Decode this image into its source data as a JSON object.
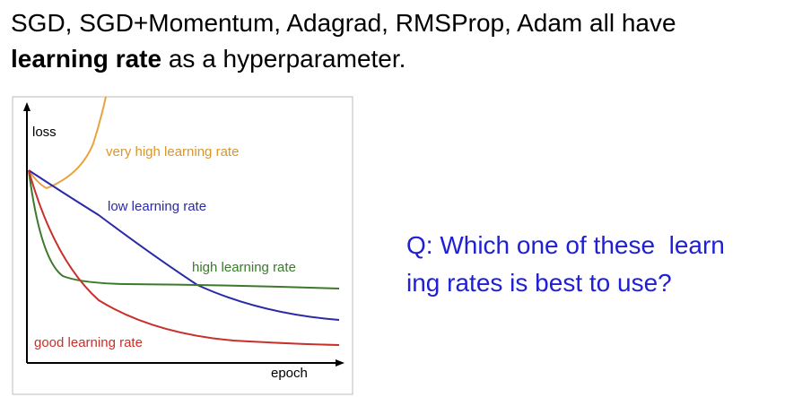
{
  "header": {
    "line1": "SGD, SGD+Momentum, Adagrad, RMSProp, Adam all have",
    "bold": "learning rate",
    "rest": " as a hyperparameter."
  },
  "figure": {
    "y_label": "loss",
    "x_label": "epoch",
    "curves": [
      {
        "label": "very high learning rate"
      },
      {
        "label": "low learning rate"
      },
      {
        "label": "high learning rate"
      },
      {
        "label": "good learning rate"
      }
    ]
  },
  "question": {
    "line1": "Q: Which one of these  learn",
    "line2": "ing rates is best to use?"
  }
}
